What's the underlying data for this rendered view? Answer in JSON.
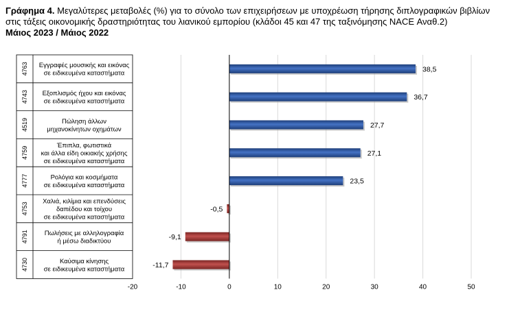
{
  "header": {
    "label": "Γράφημα 4.",
    "title": "Μεγαλύτερες μεταβολές (%) για το σύνολο των επιχειρήσεων με υποχρέωση τήρησης διπλογραφικών βιβλίων στις τάξεις οικονομικής δραστηριότητας του λιανικού εμπορίου (κλάδοι 45 και 47 της ταξινόμησης NACE Αναθ.2)",
    "subtitle": "Μάιος 2023 / Μάιος 2022"
  },
  "chart_data": {
    "type": "bar",
    "orientation": "horizontal",
    "categories": [
      {
        "code": "4763",
        "lines": [
          "Εγγραφές μουσικής και εικόνας",
          "σε ειδικευμένα καταστήματα"
        ]
      },
      {
        "code": "4743",
        "lines": [
          "Εξοπλισμός ήχου και εικόνας",
          "σε ειδικευμένα καταστήματα"
        ]
      },
      {
        "code": "4519",
        "lines": [
          "Πώληση άλλων",
          "μηχανοκίνητων οχημάτων"
        ]
      },
      {
        "code": "4759",
        "lines": [
          "Έπιπλα, φωτιστικά",
          "και άλλα είδη οικιακής χρήσης",
          "σε ειδικευμένα καταστήματα"
        ]
      },
      {
        "code": "4777",
        "lines": [
          "Ρολόγια και κοσμήματα",
          "σε ειδικευμένα καταστήματα"
        ]
      },
      {
        "code": "4753",
        "lines": [
          "Χαλιά, κιλίμια και επενδύσεις",
          "δαπέδου και τοίχου",
          "σε ειδικευμένα καταστήματα"
        ]
      },
      {
        "code": "4791",
        "lines": [
          "Πωλήσεις με αλληλογραφία",
          "ή μέσω διαδικτύου"
        ]
      },
      {
        "code": "4730",
        "lines": [
          "Καύσιμα κίνησης",
          "σε ειδικευμένα καταστήματα"
        ]
      }
    ],
    "values": [
      38.5,
      36.7,
      27.7,
      27.1,
      23.5,
      -0.5,
      -9.1,
      -11.7
    ],
    "value_labels": [
      "38,5",
      "36,7",
      "27,7",
      "27,1",
      "23,5",
      "-0,5",
      "-9,1",
      "-11,7"
    ],
    "xlim": [
      -20,
      50
    ],
    "xticks": [
      -20,
      -10,
      0,
      10,
      20,
      30,
      40,
      50
    ],
    "grid": "vertical",
    "colors": {
      "positive": "#4472C4",
      "positive_dark": "#1F3F7A",
      "negative": "#C0504D",
      "negative_dark": "#7A2624",
      "grid": "#D9D9D9",
      "axis": "#000000"
    }
  }
}
